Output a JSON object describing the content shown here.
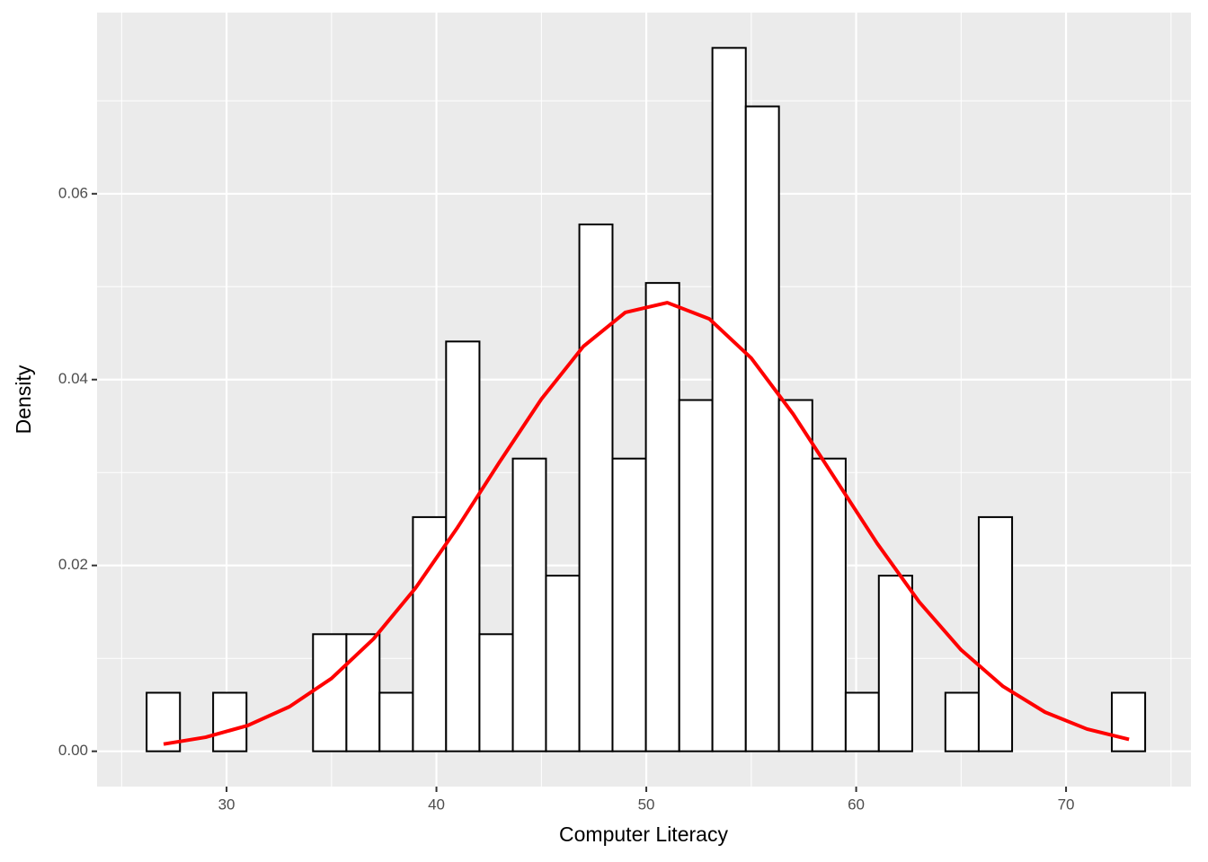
{
  "chart_data": {
    "type": "histogram",
    "x_label": "Computer Literacy",
    "y_label": "Density",
    "bins": [
      26.19,
      27.78,
      29.36,
      30.95,
      32.53,
      34.12,
      35.71,
      37.29,
      38.88,
      40.46,
      42.05,
      43.64,
      45.22,
      46.81,
      48.39,
      49.98,
      51.57,
      53.15,
      54.74,
      56.32,
      57.91,
      59.5,
      61.08,
      62.67,
      64.25,
      65.84,
      67.43,
      69.01,
      70.6,
      72.18,
      73.77
    ],
    "values": [
      0.0063,
      0,
      0.0063,
      0,
      0,
      0.0126,
      0.0126,
      0.0063,
      0.0252,
      0.0441,
      0.0126,
      0.0315,
      0.0189,
      0.0567,
      0.0315,
      0.0504,
      0.0378,
      0.0757,
      0.0694,
      0.0378,
      0.0315,
      0.0063,
      0.0189,
      0,
      0.0063,
      0.0252,
      0,
      0,
      0,
      0.0063
    ],
    "color": "#ffffff",
    "edge_color": "#000000",
    "curve": {
      "color": "#ff0000",
      "x": [
        27,
        29,
        31,
        33,
        35,
        37,
        39,
        41,
        43,
        45,
        47,
        49,
        51,
        53,
        55,
        57,
        59,
        61,
        63,
        65,
        67,
        69,
        71,
        73
      ],
      "values": [
        0.00077,
        0.00151,
        0.00277,
        0.0048,
        0.00784,
        0.01209,
        0.01756,
        0.02407,
        0.0311,
        0.0379,
        0.04357,
        0.04723,
        0.04828,
        0.04654,
        0.04231,
        0.03628,
        0.02933,
        0.02237,
        0.01608,
        0.01091,
        0.00698,
        0.00421,
        0.00239,
        0.00128
      ]
    },
    "xlim": [
      23.83,
      75.95
    ],
    "ylim": [
      -0.0038,
      0.0795
    ],
    "xticks": [
      30,
      40,
      50,
      60,
      70
    ],
    "yticks": [
      {
        "value": 0,
        "label": "0.00"
      },
      {
        "value": 0.02,
        "label": "0.02"
      },
      {
        "value": 0.04,
        "label": "0.04"
      },
      {
        "value": 0.06,
        "label": "0.06"
      }
    ],
    "grid": true
  }
}
